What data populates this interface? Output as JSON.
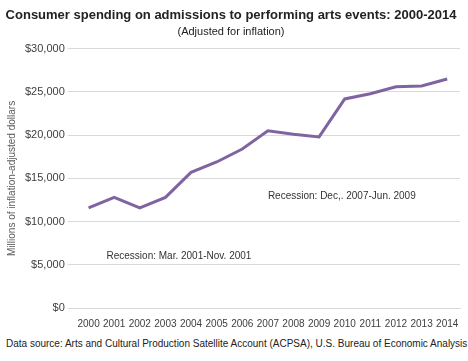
{
  "chart_data": {
    "type": "line",
    "title": "Consumer spending on admissions to performing arts events: 2000-2014",
    "subtitle": "(Adjusted for inflation)",
    "y_label": "Millions of inflation-adjusted dollars",
    "categories": [
      "2000",
      "2001",
      "2002",
      "2003",
      "2004",
      "2005",
      "2006",
      "2007",
      "2008",
      "2009",
      "2010",
      "2011",
      "2012",
      "2013",
      "2014"
    ],
    "values": [
      11600,
      12800,
      11600,
      12800,
      15700,
      16900,
      18400,
      20500,
      20100,
      19800,
      24200,
      24800,
      25600,
      25700,
      26500
    ],
    "color": "#8064a2",
    "ylim": [
      0,
      30000
    ],
    "yticks": [
      {
        "value": 0,
        "label": "$0"
      },
      {
        "value": 5000,
        "label": "$5,000"
      },
      {
        "value": 10000,
        "label": "$10,000"
      },
      {
        "value": 15000,
        "label": "$15,000"
      },
      {
        "value": 20000,
        "label": "$20,000"
      },
      {
        "value": 25000,
        "label": "$25,000"
      },
      {
        "value": 30000,
        "label": "$30,000"
      }
    ],
    "grid": true,
    "annotations": [
      "Recession: Dec,. 2007-Jun. 2009",
      "Recession: Mar. 2001-Nov. 2001"
    ],
    "source": "Data source: Arts and Cultural Production Satellite Account (ACPSA), U.S. Bureau of Economic Analysis"
  }
}
